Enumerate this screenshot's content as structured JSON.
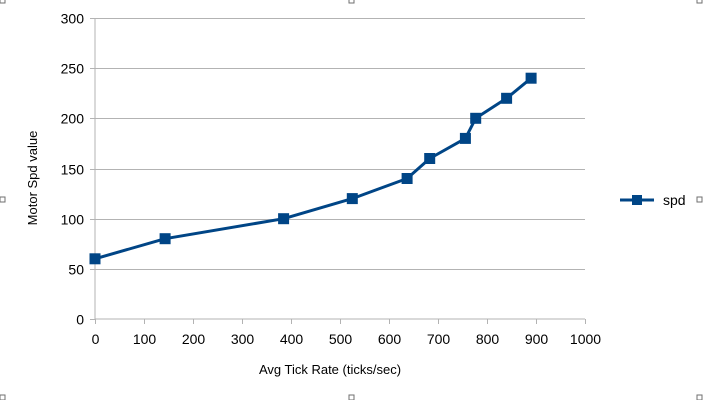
{
  "chart_data": {
    "type": "line",
    "title": "",
    "xlabel": "Avg Tick Rate (ticks/sec)",
    "ylabel": "Motor Spd value",
    "xlim": [
      0,
      1000
    ],
    "ylim": [
      0,
      300
    ],
    "xticks": [
      0,
      100,
      200,
      300,
      400,
      500,
      600,
      700,
      800,
      900,
      1000
    ],
    "yticks": [
      0,
      50,
      100,
      150,
      200,
      250,
      300
    ],
    "grid": "horizontal",
    "legend_position": "right",
    "series": [
      {
        "name": "spd",
        "color": "#004586",
        "marker": "square",
        "x": [
          0,
          143,
          385,
          525,
          637,
          683,
          756,
          777,
          840,
          890
        ],
        "y": [
          60,
          80,
          100,
          120,
          140,
          160,
          180,
          200,
          220,
          240
        ]
      }
    ]
  }
}
